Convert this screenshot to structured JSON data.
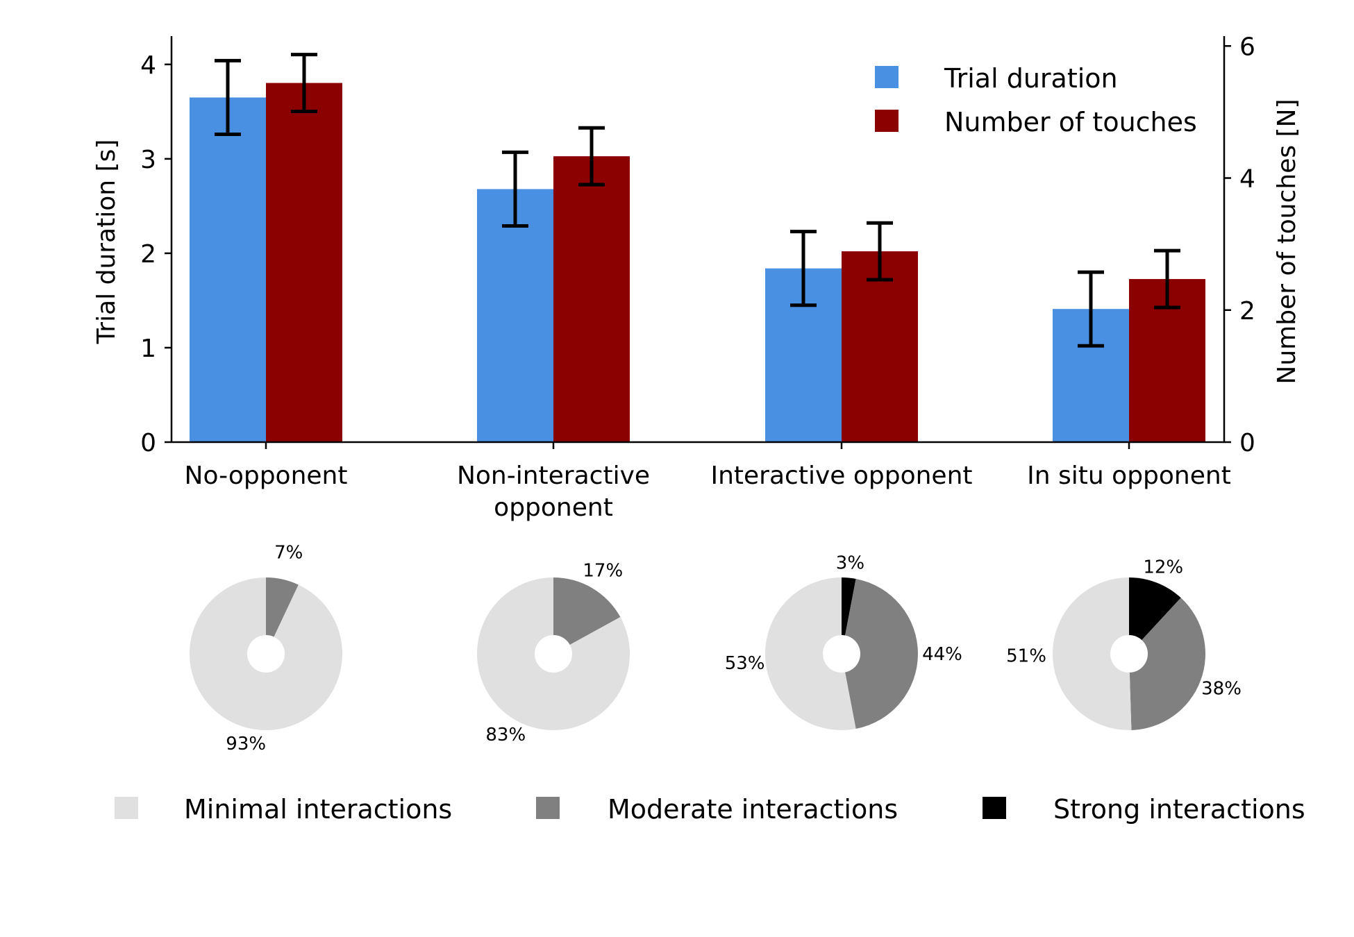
{
  "chart_data": [
    {
      "type": "bar",
      "categories": [
        [
          "No-opponent"
        ],
        [
          "Non-interactive",
          "opponent"
        ],
        [
          "Interactive opponent"
        ],
        [
          "In situ opponent"
        ]
      ],
      "series": [
        {
          "name": "Trial duration",
          "axis": "left",
          "color": "#4a90e2",
          "values": [
            3.65,
            2.68,
            1.84,
            1.41
          ],
          "errors": [
            0.39,
            0.39,
            0.39,
            0.39
          ]
        },
        {
          "name": "Number of touches",
          "axis": "right",
          "color": "#8b0000",
          "values": [
            5.44,
            4.33,
            2.89,
            2.47
          ],
          "errors": [
            0.43,
            0.43,
            0.43,
            0.43
          ]
        }
      ],
      "ylabel": "Trial duration [s]",
      "ylim": [
        0,
        4.3
      ],
      "yticks": [
        0,
        1,
        2,
        3,
        4
      ],
      "y2label": "Number of touches [N]",
      "y2lim": [
        0,
        6.15
      ],
      "y2ticks": [
        0,
        2,
        4,
        6
      ],
      "legend_position": "top-right",
      "grid": false
    },
    {
      "type": "pie",
      "style": "donut",
      "pies": [
        {
          "slices": [
            {
              "label": "Minimal interactions",
              "value": 93,
              "text": "93%"
            },
            {
              "label": "Moderate interactions",
              "value": 7,
              "text": "7%"
            }
          ]
        },
        {
          "slices": [
            {
              "label": "Minimal interactions",
              "value": 83,
              "text": "83%"
            },
            {
              "label": "Moderate interactions",
              "value": 17,
              "text": "17%"
            }
          ]
        },
        {
          "slices": [
            {
              "label": "Minimal interactions",
              "value": 53,
              "text": "53%"
            },
            {
              "label": "Moderate interactions",
              "value": 44,
              "text": "44%"
            },
            {
              "label": "Strong interactions",
              "value": 3,
              "text": "3%"
            }
          ]
        },
        {
          "slices": [
            {
              "label": "Minimal interactions",
              "value": 51,
              "text": "51%"
            },
            {
              "label": "Moderate interactions",
              "value": 38,
              "text": "38%"
            },
            {
              "label": "Strong interactions",
              "value": 12,
              "text": "12%"
            }
          ]
        }
      ],
      "legend": [
        {
          "label": "Minimal interactions",
          "color": "#e0e0e0"
        },
        {
          "label": "Moderate interactions",
          "color": "#808080"
        },
        {
          "label": "Strong interactions",
          "color": "#000000"
        }
      ]
    }
  ]
}
